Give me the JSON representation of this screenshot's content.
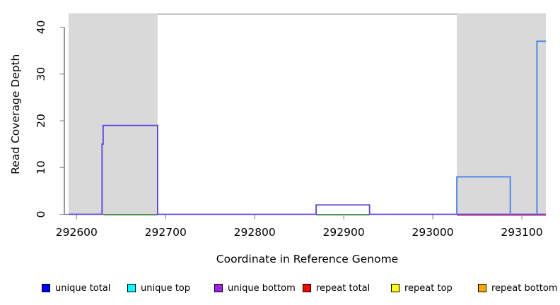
{
  "chart_data": {
    "type": "line",
    "subtype": "step-coverage-plot",
    "title": "",
    "xlabel": "Coordinate in Reference Genome",
    "ylabel": "Read Coverage Depth",
    "xlim": [
      292591,
      293127
    ],
    "ylim": [
      0,
      42.8
    ],
    "x_ticks": [
      292600,
      292700,
      292800,
      292900,
      293000,
      293100
    ],
    "x_tick_labels": [
      "292600",
      "292700",
      "292800",
      "292900",
      "293000",
      "293100"
    ],
    "y_ticks": [
      0,
      10,
      20,
      30,
      40
    ],
    "y_tick_labels": [
      "0",
      "10",
      "20",
      "30",
      "40"
    ],
    "grid": false,
    "background_color": "#ffffff",
    "shaded_region_color": "#d9d9d9",
    "shaded_regions": [
      {
        "name": "left-shaded-region",
        "x0": 292591,
        "x1": 292691
      },
      {
        "name": "right-shaded-region",
        "x0": 293027,
        "x1": 293127
      }
    ],
    "baseline_marks": [
      {
        "name": "green-baseline",
        "color": "#8fd98f",
        "segments": [
          [
            292630,
            292691
          ],
          [
            292869,
            292929
          ]
        ]
      },
      {
        "name": "red-baseline",
        "color": "#ea5a62",
        "segments": [
          [
            293027,
            293127
          ]
        ]
      }
    ],
    "series": [
      {
        "name": "unique bottom",
        "line_color": "#5f3de4",
        "segments": [
          [
            [
              292591,
              0
            ],
            [
              292628.6,
              0
            ],
            [
              292628.6,
              15
            ],
            [
              292629.8,
              15
            ],
            [
              292629.8,
              19
            ],
            [
              292691,
              19
            ],
            [
              292691,
              0
            ],
            [
              292869,
              0
            ],
            [
              292869,
              2
            ],
            [
              292929,
              2
            ],
            [
              292929,
              0
            ],
            [
              293127,
              0
            ]
          ]
        ]
      },
      {
        "name": "unique total",
        "line_color": "#3b7cf2",
        "segments": [
          [
            [
              293027,
              0
            ],
            [
              293027,
              8
            ],
            [
              293087,
              8
            ],
            [
              293087,
              0
            ]
          ],
          [
            [
              293117,
              0
            ],
            [
              293117,
              37
            ],
            [
              293127,
              37
            ]
          ]
        ]
      }
    ]
  },
  "legend": {
    "items": [
      {
        "label": "unique total",
        "color": "#0000ff"
      },
      {
        "label": "unique top",
        "color": "#00ffff"
      },
      {
        "label": "unique bottom",
        "color": "#a020f0"
      },
      {
        "label": "repeat total",
        "color": "#ff0000"
      },
      {
        "label": "repeat top",
        "color": "#ffff00"
      },
      {
        "label": "repeat bottom",
        "color": "#ffa500"
      }
    ]
  }
}
